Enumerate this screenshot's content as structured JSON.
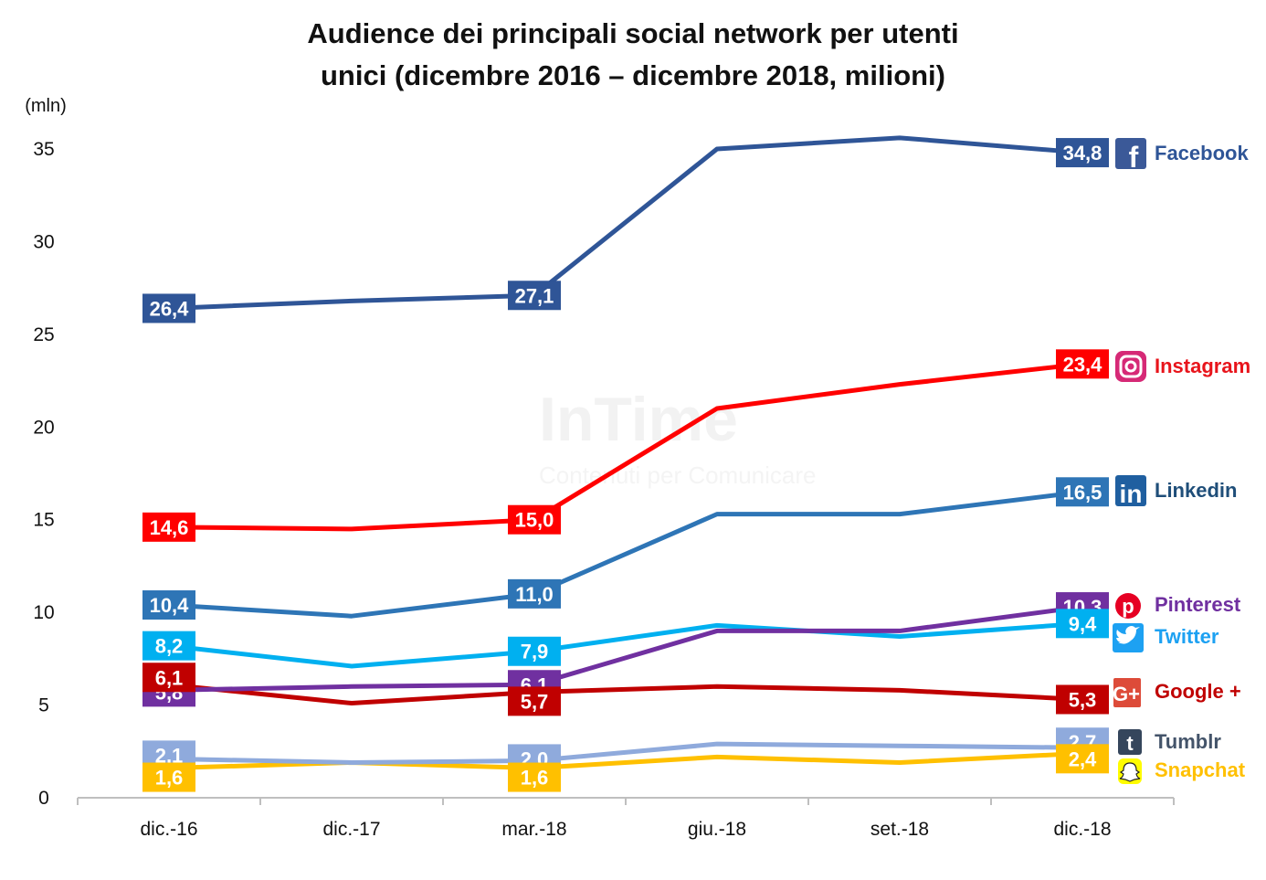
{
  "title_line1": "Audience dei principali social network per utenti",
  "title_line2": "unici (dicembre 2016 – dicembre 2018, milioni)",
  "watermark": {
    "line1": "InTime",
    "line2": "Contenuti per Comunicare"
  },
  "chart_data": {
    "type": "line",
    "title": "Audience dei principali social network per utenti unici (dicembre 2016 – dicembre 2018, milioni)",
    "ylabel": "(mln)",
    "xlabel": "",
    "ylim": [
      0,
      35
    ],
    "yticks": [
      "0",
      "5",
      "10",
      "15",
      "20",
      "25",
      "30",
      "35"
    ],
    "categories": [
      "dic.-16",
      "dic.-17",
      "mar.-18",
      "giu.-18",
      "set.-18",
      "dic.-18"
    ],
    "series": [
      {
        "name": "Facebook",
        "color": "#2f5597",
        "text_color": "#2f5597",
        "icon": "facebook-icon",
        "values": [
          26.4,
          26.8,
          27.1,
          35.0,
          35.6,
          34.8
        ],
        "labels": [
          {
            "i": 0,
            "text": "26,4"
          },
          {
            "i": 2,
            "text": "27,1"
          },
          {
            "i": 5,
            "text": "34,8"
          }
        ]
      },
      {
        "name": "Instagram",
        "color": "#ff0000",
        "text_color": "#e8141b",
        "icon": "instagram-icon",
        "values": [
          14.6,
          14.5,
          15.0,
          21.0,
          22.3,
          23.4
        ],
        "labels": [
          {
            "i": 0,
            "text": "14,6"
          },
          {
            "i": 2,
            "text": "15,0"
          },
          {
            "i": 5,
            "text": "23,4"
          }
        ]
      },
      {
        "name": "Linkedin",
        "color": "#2e75b6",
        "text_color": "#1f4e79",
        "icon": "linkedin-icon",
        "values": [
          10.4,
          9.8,
          11.0,
          15.3,
          15.3,
          16.5
        ],
        "labels": [
          {
            "i": 0,
            "text": "10,4"
          },
          {
            "i": 2,
            "text": "11,0"
          },
          {
            "i": 5,
            "text": "16,5"
          }
        ]
      },
      {
        "name": "Pinterest",
        "color": "#7030a0",
        "text_color": "#7030a0",
        "icon": "pinterest-icon",
        "values": [
          5.8,
          6.0,
          6.1,
          9.0,
          9.0,
          10.3
        ],
        "labels": [
          {
            "i": 0,
            "text": "5,8"
          },
          {
            "i": 2,
            "text": "6,1"
          },
          {
            "i": 5,
            "text": "10,3"
          }
        ]
      },
      {
        "name": "Twitter",
        "color": "#00b0f0",
        "text_color": "#1da1f2",
        "icon": "twitter-icon",
        "values": [
          8.2,
          7.1,
          7.9,
          9.3,
          8.7,
          9.4
        ],
        "labels": [
          {
            "i": 0,
            "text": "8,2"
          },
          {
            "i": 2,
            "text": "7,9"
          },
          {
            "i": 5,
            "text": "9,4"
          }
        ]
      },
      {
        "name": "Google +",
        "color": "#c00000",
        "text_color": "#c00000",
        "icon": "google-plus-icon",
        "values": [
          6.1,
          5.1,
          5.7,
          6.0,
          5.8,
          5.3
        ],
        "labels": [
          {
            "i": 0,
            "text": "6,1"
          },
          {
            "i": 2,
            "text": "5,7"
          },
          {
            "i": 5,
            "text": "5,3"
          }
        ]
      },
      {
        "name": "Tumblr",
        "color": "#8faadc",
        "text_color": "#44546a",
        "icon": "tumblr-icon",
        "values": [
          2.1,
          1.9,
          2.0,
          2.9,
          2.8,
          2.7
        ],
        "labels": [
          {
            "i": 0,
            "text": "2,1"
          },
          {
            "i": 2,
            "text": "2,0"
          },
          {
            "i": 5,
            "text": "2,7"
          }
        ]
      },
      {
        "name": "Snapchat",
        "color": "#ffc000",
        "text_color": "#ffc000",
        "icon": "snapchat-icon",
        "values": [
          1.6,
          1.9,
          1.6,
          2.2,
          1.9,
          2.4
        ],
        "labels": [
          {
            "i": 0,
            "text": "1,6"
          },
          {
            "i": 2,
            "text": "1,6"
          },
          {
            "i": 5,
            "text": "2,4"
          }
        ]
      }
    ]
  }
}
